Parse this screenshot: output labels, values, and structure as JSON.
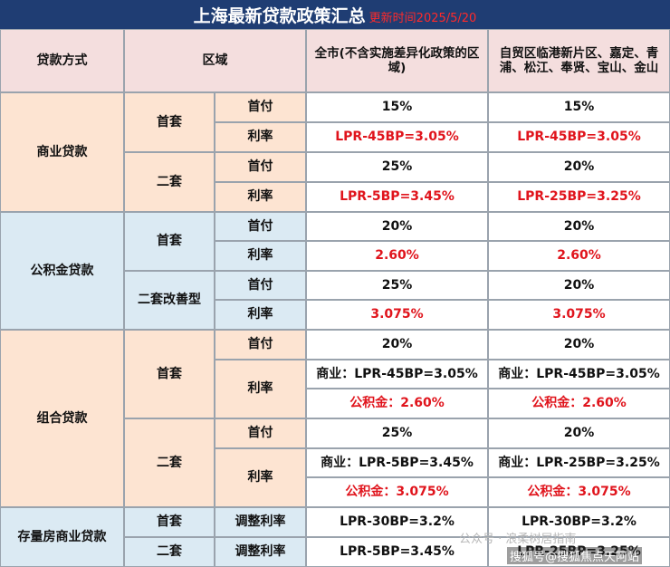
{
  "title": {
    "main": "上海最新贷款政策汇总",
    "date": "更新时间2025/5/20"
  },
  "header": {
    "loan_type": "贷款方式",
    "area": "区域",
    "col_city": "全市(不含实施差异化政策的区域)",
    "col_zones": "自贸区临港新片区、嘉定、青浦、松江、奉贤、宝山、金山"
  },
  "labels": {
    "down_payment": "首付",
    "rate": "利率",
    "first_home": "首套",
    "second_home": "二套",
    "second_improve": "二套改善型",
    "adjusted_rate": "调整利率"
  },
  "commercial": {
    "name": "商业贷款",
    "first": {
      "dp_city": "15%",
      "dp_zone": "15%",
      "rate_city": "LPR-45BP=3.05%",
      "rate_zone": "LPR-45BP=3.05%"
    },
    "second": {
      "dp_city": "25%",
      "dp_zone": "20%",
      "rate_city": "LPR-5BP=3.45%",
      "rate_zone": "LPR-25BP=3.25%"
    }
  },
  "provident": {
    "name": "公积金贷款",
    "first": {
      "dp_city": "20%",
      "dp_zone": "20%",
      "rate_city": "2.60%",
      "rate_zone": "2.60%"
    },
    "second": {
      "dp_city": "25%",
      "dp_zone": "20%",
      "rate_city": "3.075%",
      "rate_zone": "3.075%"
    }
  },
  "combined": {
    "name": "组合贷款",
    "first": {
      "dp_city": "20%",
      "dp_zone": "20%",
      "com_city": "商业：LPR-45BP=3.05%",
      "com_zone": "商业：LPR-45BP=3.05%",
      "fund_city": "公积金：2.60%",
      "fund_zone": "公积金：2.60%"
    },
    "second": {
      "dp_city": "25%",
      "dp_zone": "20%",
      "com_city": "商业：LPR-5BP=3.45%",
      "com_zone": "商业：LPR-25BP=3.25%",
      "fund_city": "公积金：3.075%",
      "fund_zone": "公积金：3.075%"
    }
  },
  "existing": {
    "name": "存量房商业贷款",
    "first": {
      "city": "LPR-30BP=3.2%",
      "zone": "LPR-30BP=3.2%"
    },
    "second": {
      "city": "LPR-5BP=3.45%",
      "zone": "LPR-25BP=3.25%"
    }
  },
  "watermark": {
    "top": "公众号 · 浪柔树居指南",
    "bottom": "搜狐号@搜狐焦点天阿站"
  },
  "colors": {
    "title_bg": "#1f3d73",
    "commercial_bg": "#fde4d2",
    "provident_bg": "#dbeaf3",
    "header_bg": "#f4dede",
    "accent_red": "#e0141c"
  }
}
